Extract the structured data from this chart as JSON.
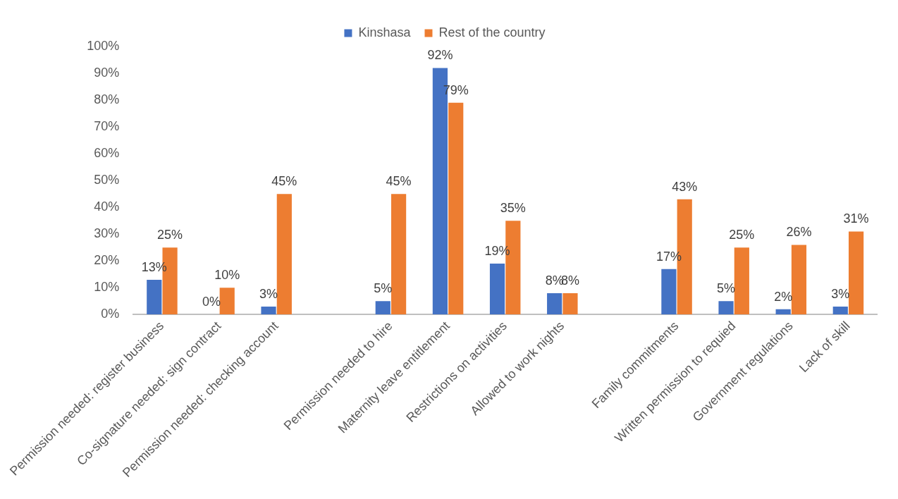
{
  "chart_data": {
    "type": "bar",
    "categories": [
      "Permission needed: register business",
      "Co-signature needed: sign contract",
      "Permission needed: checking account",
      null,
      "Permission needed to hire",
      "Maternity leave entitlement",
      "Restrictions on activities",
      "Allowed to work nights",
      null,
      "Family commitments",
      "Written permission to requied",
      "Government regulations",
      "Lack of skill"
    ],
    "series": [
      {
        "name": "Kinshasa",
        "color": "#4472c4",
        "values": [
          13,
          0,
          3,
          null,
          5,
          92,
          19,
          8,
          null,
          17,
          5,
          2,
          3
        ],
        "value_labels": [
          "13%",
          "0%",
          "3%",
          null,
          "5%",
          "92%",
          "19%",
          "8%",
          null,
          "17%",
          "5%",
          "2%",
          "3%"
        ]
      },
      {
        "name": "Rest of the country",
        "color": "#ed7d31",
        "values": [
          25,
          10,
          45,
          null,
          45,
          79,
          35,
          8,
          null,
          43,
          25,
          26,
          31
        ],
        "value_labels": [
          "25%",
          "10%",
          "45%",
          null,
          "45%",
          "79%",
          "35%",
          "8%",
          null,
          "43%",
          "25%",
          "26%",
          "31%"
        ]
      }
    ],
    "ylim": [
      0,
      100
    ],
    "yticks": [
      {
        "value": 0,
        "label": "0%"
      },
      {
        "value": 10,
        "label": "10%"
      },
      {
        "value": 20,
        "label": "20%"
      },
      {
        "value": 30,
        "label": "30%"
      },
      {
        "value": 40,
        "label": "40%"
      },
      {
        "value": 50,
        "label": "50%"
      },
      {
        "value": 60,
        "label": "60%"
      },
      {
        "value": 70,
        "label": "70%"
      },
      {
        "value": 80,
        "label": "80%"
      },
      {
        "value": 90,
        "label": "90%"
      },
      {
        "value": 100,
        "label": "100%"
      }
    ],
    "grid": false,
    "legend": "top"
  }
}
